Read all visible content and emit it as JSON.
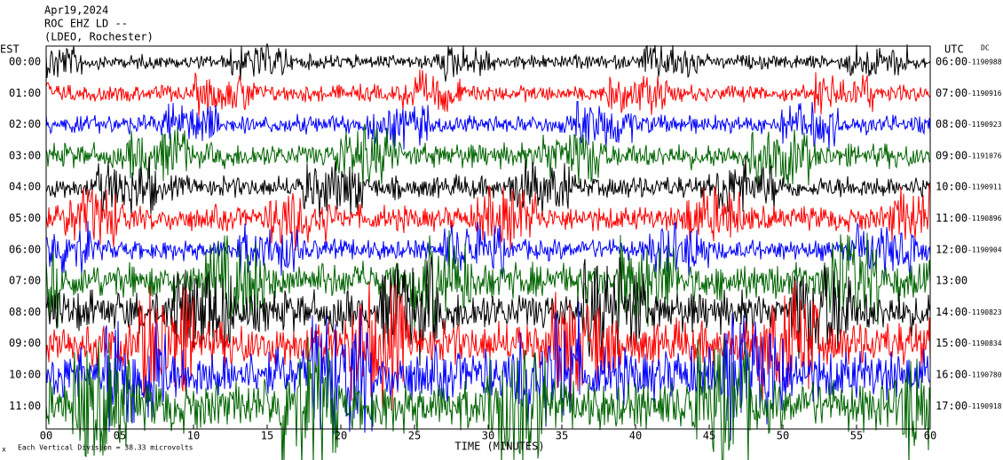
{
  "header": {
    "date": "Apr19,2024",
    "station": "ROC EHZ LD --",
    "network": "(LDEO, Rochester)"
  },
  "left_axis": {
    "label": "EST",
    "ticks": [
      "00:00",
      "01:00",
      "02:00",
      "03:00",
      "04:00",
      "05:00",
      "06:00",
      "07:00",
      "08:00",
      "09:00",
      "10:00",
      "11:00"
    ]
  },
  "right_axis": {
    "label": "UTC",
    "dc_label": "DC",
    "ticks": [
      "06:00",
      "07:00",
      "08:00",
      "09:00",
      "10:00",
      "11:00",
      "12:00",
      "13:00",
      "14:00",
      "15:00",
      "16:00",
      "17:00"
    ],
    "dc_values": [
      "-1190988",
      "-1190916",
      "-1190923",
      "-1191076",
      "-1190911",
      "-1190896",
      "-1190904",
      null,
      "-1190823",
      "-1190834",
      "-1190780",
      "-1190918"
    ]
  },
  "x_axis": {
    "label": "TIME (MINUTES)",
    "ticks": [
      "00",
      "05",
      "10",
      "15",
      "20",
      "25",
      "30",
      "35",
      "40",
      "45",
      "50",
      "55",
      "60"
    ]
  },
  "footer": "Each Vertical Division = 38.33 microvolts",
  "trace_colors": [
    "#000000",
    "#ff0000",
    "#0000ff",
    "#006400"
  ]
}
